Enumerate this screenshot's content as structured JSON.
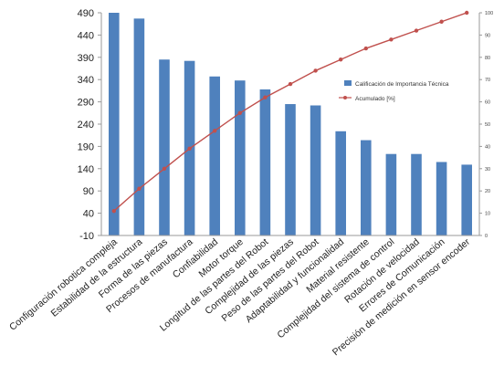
{
  "chart_data": {
    "type": "bar",
    "title": "",
    "xlabel": "",
    "ylabel": "",
    "categories": [
      "Configuración robotica compleja",
      "Estabilidad de la estructura",
      "Forma de las piezas",
      "Procesos de manufactura",
      "Confiabilidad",
      "Motor torque",
      "Longitud de las partes del Robot",
      "Complejidad de las piezas",
      "Peso de las partes del Robot",
      "Adaptabilidad y funcionalidad",
      "Material resistente",
      "Complejidad del sistema de control",
      "Rotación de velocidad",
      "Errores de Comunicación",
      "Precisión de medición en sensor encoder"
    ],
    "series": [
      {
        "name": "Calificación de Importancia Técnica",
        "type": "bar",
        "axis": "left",
        "color": "#4f81bd",
        "values": [
          490,
          477,
          385,
          382,
          347,
          338,
          318,
          285,
          282,
          224,
          204,
          173,
          173,
          155,
          149
        ]
      },
      {
        "name": "Acumulado [%]",
        "type": "line",
        "axis": "right",
        "color": "#c0504d",
        "values": [
          11,
          21,
          30,
          39,
          47,
          55,
          62,
          68,
          74,
          79,
          84,
          88,
          92,
          96,
          100
        ]
      }
    ],
    "ylim": [
      -10,
      490
    ],
    "yticks": [
      "490",
      "440",
      "390",
      "340",
      "290",
      "240",
      "190",
      "140",
      "90",
      "40",
      "-10"
    ],
    "y2lim": [
      0,
      100
    ],
    "y2ticks": [
      "100",
      "90",
      "80",
      "70",
      "60",
      "50",
      "40",
      "30",
      "20",
      "10",
      "0"
    ],
    "grid": false,
    "legend_position": "center-right"
  }
}
